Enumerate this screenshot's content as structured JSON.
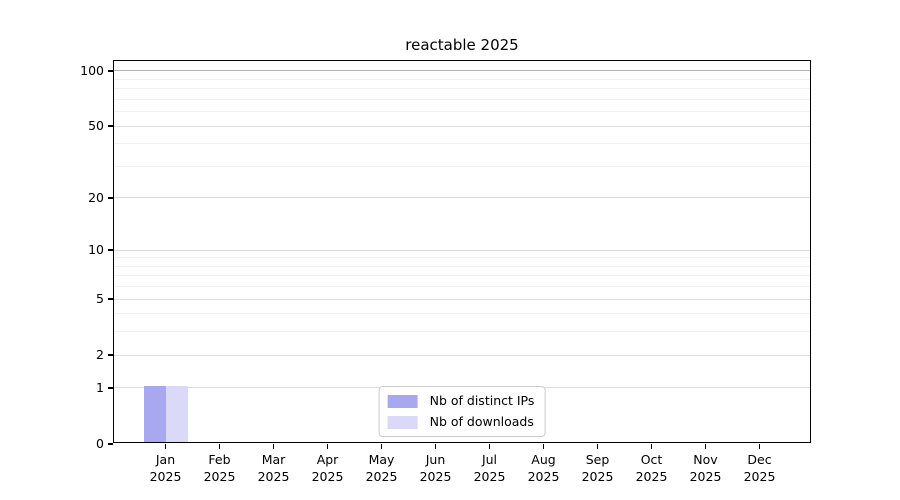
{
  "chart_data": {
    "type": "bar",
    "title": "reactable 2025",
    "categories": [
      "Jan",
      "Feb",
      "Mar",
      "Apr",
      "May",
      "Jun",
      "Jul",
      "Aug",
      "Sep",
      "Oct",
      "Nov",
      "Dec"
    ],
    "category_year": "2025",
    "series": [
      {
        "name": "Nb of distinct IPs",
        "color": "#a8a8f0",
        "values": [
          1,
          0,
          0,
          0,
          0,
          0,
          0,
          0,
          0,
          0,
          0,
          0
        ]
      },
      {
        "name": "Nb of downloads",
        "color": "#dadaf8",
        "values": [
          1,
          0,
          0,
          0,
          0,
          0,
          0,
          0,
          0,
          0,
          0,
          0
        ]
      }
    ],
    "xlabel": "",
    "ylabel": "",
    "y_scale": "log10(1+v)",
    "ylim": [
      0,
      113
    ],
    "y_major_ticks": [
      0,
      1,
      2,
      5,
      10,
      20,
      50,
      100
    ],
    "y_minor_ticks": [
      3,
      4,
      6,
      7,
      8,
      9,
      30,
      40,
      60,
      70,
      80,
      90
    ],
    "grid": true,
    "legend_position": "lower center",
    "colors": {
      "grid_major": "#dcdcdc",
      "grid_top": "#b3b3b3",
      "grid_minor": "#f1f1f1",
      "spine": "#000000",
      "text": "#000000",
      "legend_border": "#cccccc",
      "background": "#ffffff"
    }
  }
}
